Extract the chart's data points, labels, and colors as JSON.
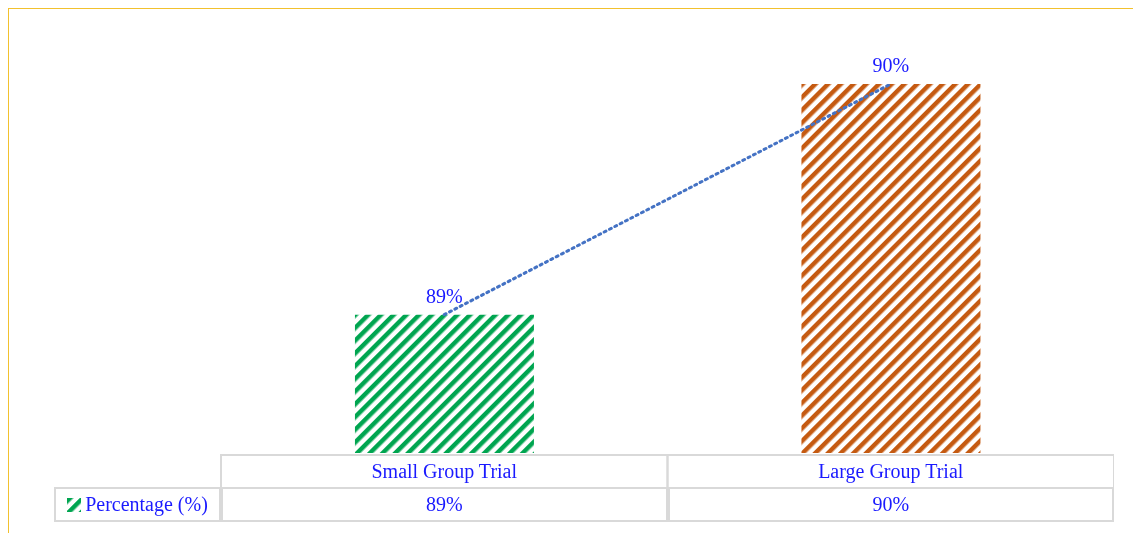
{
  "chart_data": {
    "type": "bar",
    "categories": [
      "Small Group Trial",
      "Large Group Trial"
    ],
    "series": [
      {
        "name": "Percentage (%)",
        "colors": [
          "#00a550",
          "#c55a11"
        ],
        "values": [
          89,
          90
        ],
        "value_labels": [
          "89%",
          "90%"
        ]
      },
      {
        "type": "line",
        "color": "#4472c4",
        "values": [
          89,
          90
        ],
        "line_style": "dotted",
        "marker": "none"
      }
    ],
    "ylim": [
      88.4,
      90
    ],
    "tick_labels": "x",
    "grid": false,
    "legend": "bottom"
  }
}
